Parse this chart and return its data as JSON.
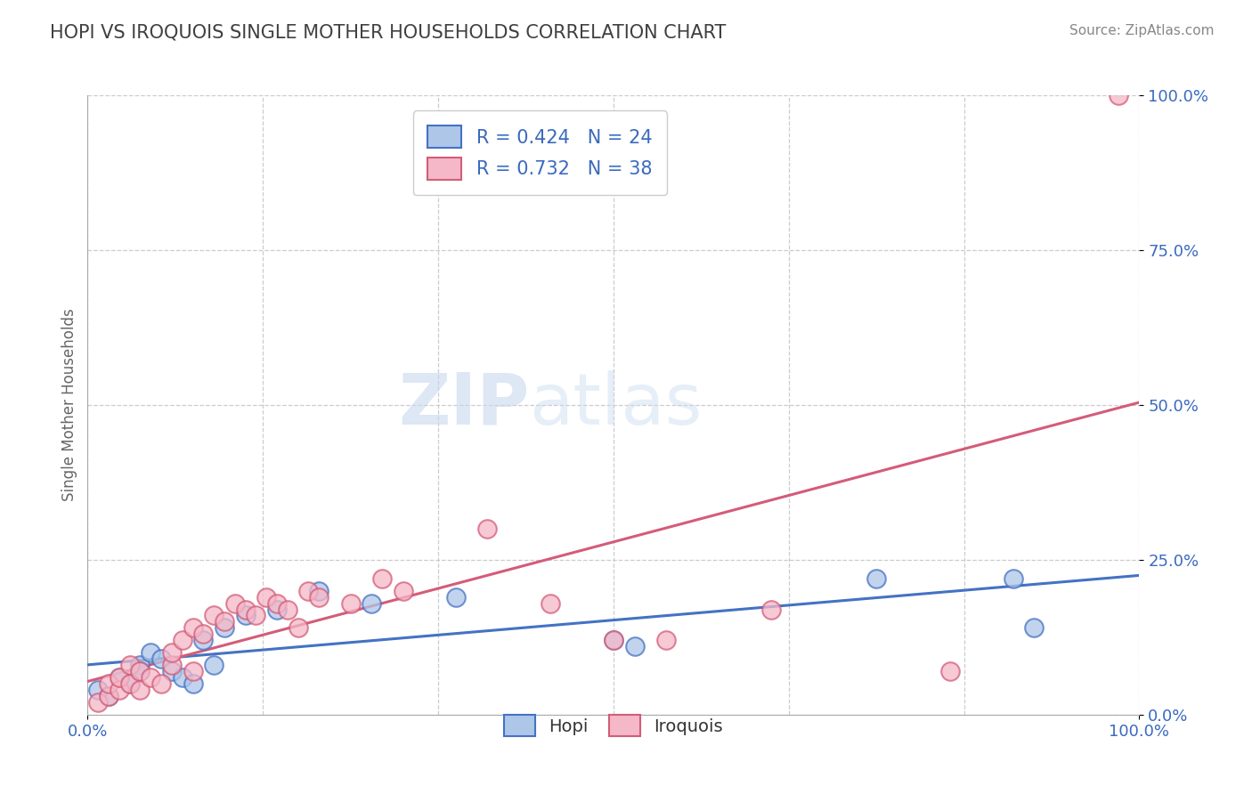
{
  "title": "HOPI VS IROQUOIS SINGLE MOTHER HOUSEHOLDS CORRELATION CHART",
  "source": "Source: ZipAtlas.com",
  "ylabel": "Single Mother Households",
  "xlim": [
    0.0,
    1.0
  ],
  "ylim": [
    0.0,
    1.0
  ],
  "ytick_vals": [
    0.0,
    0.25,
    0.5,
    0.75,
    1.0
  ],
  "hopi_R": 0.424,
  "hopi_N": 24,
  "iroquois_R": 0.732,
  "iroquois_N": 38,
  "hopi_color": "#aec6e8",
  "iroquois_color": "#f5b8c8",
  "hopi_line_color": "#4472c4",
  "iroquois_line_color": "#d45c78",
  "legend_text_color": "#3a6abf",
  "title_color": "#404040",
  "background_color": "#ffffff",
  "grid_color": "#cccccc",
  "hopi_scatter_x": [
    0.01,
    0.02,
    0.03,
    0.04,
    0.05,
    0.05,
    0.06,
    0.07,
    0.08,
    0.09,
    0.1,
    0.11,
    0.12,
    0.13,
    0.15,
    0.18,
    0.22,
    0.27,
    0.35,
    0.5,
    0.52,
    0.75,
    0.88,
    0.9
  ],
  "hopi_scatter_y": [
    0.04,
    0.03,
    0.06,
    0.05,
    0.08,
    0.07,
    0.1,
    0.09,
    0.07,
    0.06,
    0.05,
    0.12,
    0.08,
    0.14,
    0.16,
    0.17,
    0.2,
    0.18,
    0.19,
    0.12,
    0.11,
    0.22,
    0.22,
    0.14
  ],
  "iroquois_scatter_x": [
    0.01,
    0.02,
    0.02,
    0.03,
    0.03,
    0.04,
    0.04,
    0.05,
    0.05,
    0.06,
    0.07,
    0.08,
    0.08,
    0.09,
    0.1,
    0.1,
    0.11,
    0.12,
    0.13,
    0.14,
    0.15,
    0.16,
    0.17,
    0.18,
    0.19,
    0.2,
    0.21,
    0.22,
    0.25,
    0.28,
    0.3,
    0.38,
    0.44,
    0.5,
    0.55,
    0.65,
    0.82,
    0.98
  ],
  "iroquois_scatter_y": [
    0.02,
    0.03,
    0.05,
    0.04,
    0.06,
    0.05,
    0.08,
    0.07,
    0.04,
    0.06,
    0.05,
    0.08,
    0.1,
    0.12,
    0.07,
    0.14,
    0.13,
    0.16,
    0.15,
    0.18,
    0.17,
    0.16,
    0.19,
    0.18,
    0.17,
    0.14,
    0.2,
    0.19,
    0.18,
    0.22,
    0.2,
    0.3,
    0.18,
    0.12,
    0.12,
    0.17,
    0.07,
    1.0
  ]
}
